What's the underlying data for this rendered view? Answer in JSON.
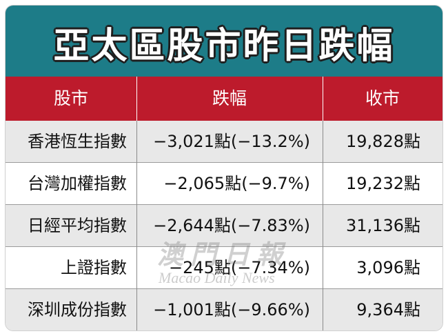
{
  "title": "亞太區股市昨日跌幅",
  "headers": [
    "股市",
    "跌幅",
    "收市"
  ],
  "rows": [
    {
      "name": "香港恆生指數",
      "change": "−3,021點(−13.2%)",
      "close": "19,828點"
    },
    {
      "name": "台灣加權指數",
      "change": "−2,065點(−9.7%)",
      "close": "19,232點"
    },
    {
      "name": "日經平均指數",
      "change": "−2,644點(−7.83%)",
      "close": "31,136點"
    },
    {
      "name": "上證指數",
      "change": "−245點(−7.34%)",
      "close": "3,096點"
    },
    {
      "name": "深圳成份指數",
      "change": "−1,001點(−9.66%)",
      "close": "9,364點"
    }
  ],
  "watermark": {
    "cn": "澳門日報",
    "en": "Macao Daily News"
  },
  "colors": {
    "title_bg": "#1d7c88",
    "header_bg": "#bd1b2c",
    "row_alt": "#e8e8e8"
  }
}
